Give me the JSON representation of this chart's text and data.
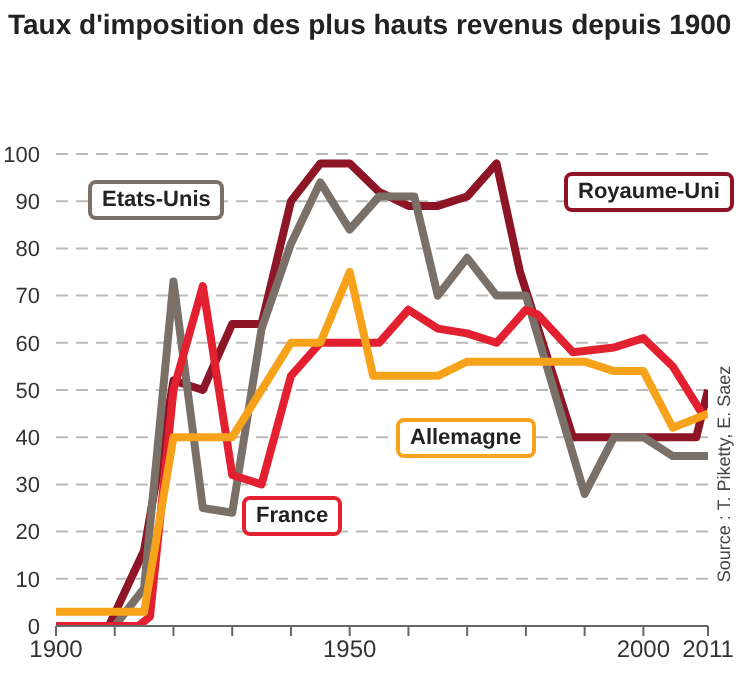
{
  "chart_data": {
    "type": "line",
    "title": "Taux d'imposition des plus hauts revenus depuis 1900",
    "xlim": [
      1900,
      2011
    ],
    "xticks": [
      1900,
      {
        "value": 1910,
        "label": null
      },
      {
        "value": 1920,
        "label": null
      },
      {
        "value": 1930,
        "label": null
      },
      {
        "value": 1940,
        "label": null
      },
      1950,
      {
        "value": 1960,
        "label": null
      },
      {
        "value": 1970,
        "label": null
      },
      {
        "value": 1980,
        "label": null
      },
      {
        "value": 1990,
        "label": null
      },
      2000,
      2011
    ],
    "ylim": [
      0,
      100
    ],
    "yticks": [
      0,
      10,
      20,
      30,
      40,
      50,
      60,
      70,
      80,
      90,
      100
    ],
    "grid": "y",
    "legend": false,
    "marker": "none",
    "line_style": "solid",
    "annotations": [
      "Source : T. Piketty, E. Saez"
    ],
    "series": [
      {
        "name": "Royaume-Uni",
        "color": "#8e1526",
        "x": [
          1900,
          1909,
          1915,
          1920,
          1925,
          1930,
          1935,
          1940,
          1945,
          1950,
          1955,
          1960,
          1965,
          1970,
          1975,
          1979,
          1988,
          2009,
          2011
        ],
        "values": [
          0,
          0,
          16,
          52,
          50,
          64,
          64,
          90,
          98,
          98,
          92,
          89,
          89,
          91,
          98,
          75,
          40,
          40,
          50
        ]
      },
      {
        "name": "Etats-Unis",
        "color": "#7a7068",
        "x": [
          1900,
          1910,
          1915,
          1920,
          1925,
          1930,
          1935,
          1940,
          1945,
          1950,
          1955,
          1961,
          1965,
          1970,
          1975,
          1980,
          1990,
          1995,
          2000,
          2005,
          2011
        ],
        "values": [
          0,
          0,
          8,
          73,
          25,
          24,
          63,
          81,
          94,
          84,
          91,
          91,
          70,
          78,
          70,
          70,
          28,
          40,
          40,
          36,
          36
        ]
      },
      {
        "name": "France",
        "color": "#e3202f",
        "x": [
          1900,
          1914,
          1916,
          1920,
          1925,
          1930,
          1935,
          1940,
          1945,
          1950,
          1955,
          1960,
          1965,
          1970,
          1975,
          1980,
          1982,
          1988,
          1995,
          2000,
          2005,
          2010
        ],
        "values": [
          0,
          0,
          2,
          50,
          72,
          32,
          30,
          53,
          60,
          60,
          60,
          67,
          63,
          62,
          60,
          67,
          66,
          58,
          59,
          61,
          55,
          45
        ]
      },
      {
        "name": "Allemagne",
        "color": "#f7a21b",
        "x": [
          1900,
          1915,
          1920,
          1930,
          1935,
          1940,
          1945,
          1950,
          1954,
          1965,
          1970,
          1980,
          1990,
          1995,
          2000,
          2005,
          2011
        ],
        "values": [
          3,
          3,
          40,
          40,
          50,
          60,
          60,
          75,
          53,
          53,
          56,
          56,
          56,
          54,
          54,
          42,
          45
        ]
      }
    ]
  }
}
